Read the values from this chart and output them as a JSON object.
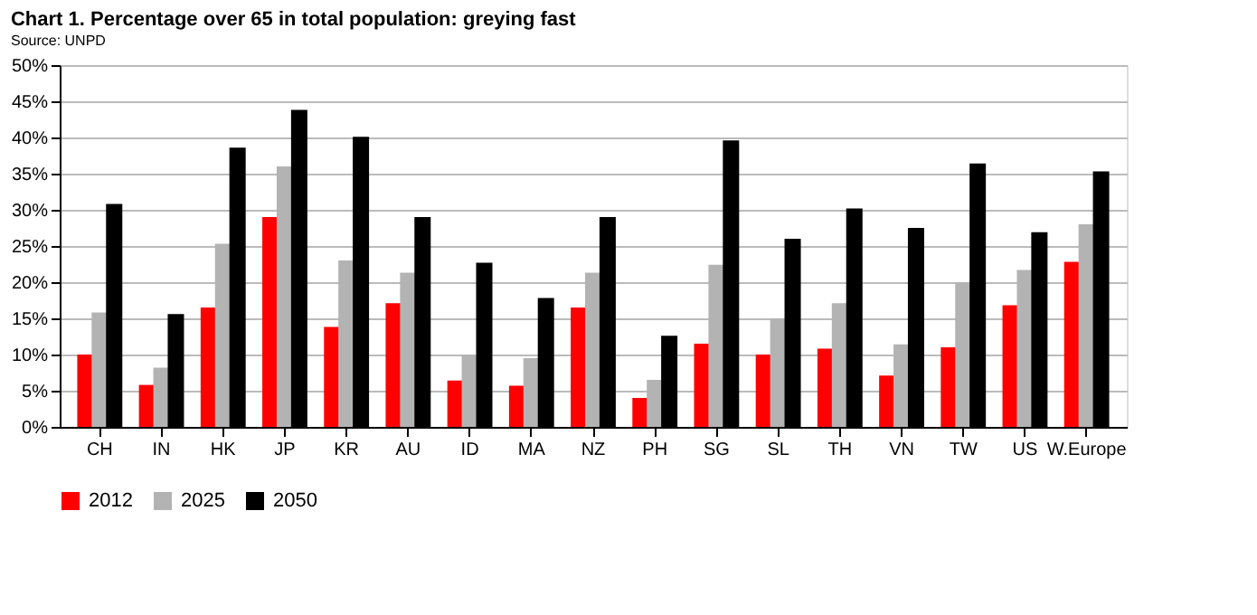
{
  "chart_data": {
    "type": "bar",
    "title": "Chart 1. Percentage over 65 in total population: greying fast",
    "categories": [
      "CH",
      "IN",
      "HK",
      "JP",
      "KR",
      "AU",
      "ID",
      "MA",
      "NZ",
      "PH",
      "SG",
      "SL",
      "TH",
      "VN",
      "TW",
      "US",
      "W.Europe"
    ],
    "series": [
      {
        "name": "2012",
        "color": "#ff0000",
        "values": [
          10,
          5.8,
          16.5,
          29,
          13.8,
          17.1,
          6.4,
          5.7,
          16.5,
          4,
          11.5,
          10,
          10.8,
          7.1,
          11,
          16.8,
          22.8
        ]
      },
      {
        "name": "2025",
        "color": "#b3b3b3",
        "values": [
          15.8,
          8.2,
          25.3,
          36,
          23,
          21.3,
          10,
          9.5,
          21.3,
          6.5,
          22.4,
          15,
          17.1,
          11.4,
          20,
          21.7,
          28
        ]
      },
      {
        "name": "2050",
        "color": "#000000",
        "values": [
          30.8,
          15.6,
          38.6,
          43.8,
          40.1,
          29,
          22.7,
          17.8,
          29,
          12.6,
          39.6,
          26,
          30.2,
          27.5,
          36.4,
          26.9,
          35.3
        ]
      }
    ],
    "ylim": [
      0,
      50
    ],
    "yticks": [
      {
        "value": 0,
        "label": "0%"
      },
      {
        "value": 5,
        "label": "5%"
      },
      {
        "value": 10,
        "label": "10%"
      },
      {
        "value": 15,
        "label": "15%"
      },
      {
        "value": 20,
        "label": "20%"
      },
      {
        "value": 25,
        "label": "25%"
      },
      {
        "value": 30,
        "label": "30%"
      },
      {
        "value": 35,
        "label": "35%"
      },
      {
        "value": 40,
        "label": "40%"
      },
      {
        "value": 45,
        "label": "45%"
      },
      {
        "value": 50,
        "label": "50%"
      }
    ],
    "grid": "y",
    "legend": "bottom",
    "annotations": [
      "Source: UNPD"
    ]
  }
}
